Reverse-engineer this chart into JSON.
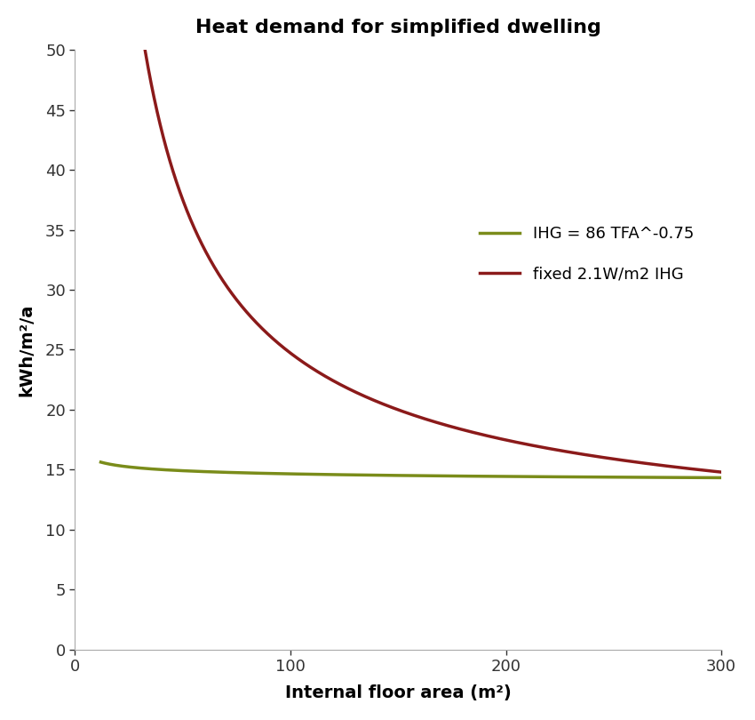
{
  "title": "Heat demand for simplified dwelling",
  "xlabel": "Internal floor area (m²)",
  "ylabel": "kWh/m²/a",
  "xmin": 0,
  "xmax": 300,
  "ymin": 0,
  "ymax": 50,
  "yticks": [
    0,
    5,
    10,
    15,
    20,
    25,
    30,
    35,
    40,
    45,
    50
  ],
  "xticks": [
    0,
    100,
    200,
    300
  ],
  "line1_label": "IHG = 86 TFA^-0.75",
  "line1_color": "#7a8c1a",
  "line2_label": "fixed 2.1W/m2 IHG",
  "line2_color": "#8b1a1a",
  "line_width": 2.5,
  "title_fontsize": 16,
  "label_fontsize": 14,
  "tick_fontsize": 13,
  "legend_fontsize": 13,
  "background_color": "#ffffff",
  "x_data_start": 12,
  "x_data_end": 300,
  "green_a": 13.5,
  "green_b": 5.5,
  "green_c": -0.18,
  "green_d": 0.55,
  "green_e": 0.022,
  "red_a": 8.5,
  "red_b": 800.0,
  "red_c": -0.78
}
